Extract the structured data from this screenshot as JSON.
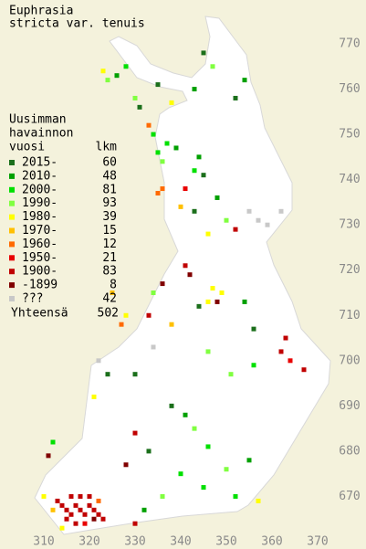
{
  "title": [
    "Euphrasia",
    "stricta var. tenuis"
  ],
  "legend": {
    "header": [
      "Uusimman",
      "havainnon",
      "vuosi"
    ],
    "count_header": "lkm",
    "rows": [
      {
        "label": "2015-",
        "count": 60,
        "color": "#1b6f1b"
      },
      {
        "label": "2010-",
        "count": 48,
        "color": "#00a000"
      },
      {
        "label": "2000-",
        "count": 81,
        "color": "#00e000"
      },
      {
        "label": "1990-",
        "count": 93,
        "color": "#80ff40"
      },
      {
        "label": "1980-",
        "count": 39,
        "color": "#ffff00"
      },
      {
        "label": "1970-",
        "count": 15,
        "color": "#ffc000"
      },
      {
        "label": "1960-",
        "count": 12,
        "color": "#ff6a00"
      },
      {
        "label": "1950-",
        "count": 21,
        "color": "#e80000"
      },
      {
        "label": "1900-",
        "count": 83,
        "color": "#c00000"
      },
      {
        "label": "-1899",
        "count": 8,
        "color": "#800000"
      },
      {
        "label": "???",
        "count": 42,
        "color": "#c8c8c8"
      }
    ],
    "total_label": "Yhteensä",
    "total": 502
  },
  "xlim": [
    310,
    370
  ],
  "xticks": [
    310,
    320,
    330,
    340,
    350,
    360,
    370
  ],
  "ylim": [
    660,
    770
  ],
  "yticks": [
    670,
    680,
    690,
    700,
    710,
    720,
    730,
    740,
    750,
    760,
    770
  ],
  "squares": [
    [
      328,
      765,
      2
    ],
    [
      326,
      763,
      1
    ],
    [
      345,
      768,
      0
    ],
    [
      347,
      765,
      3
    ],
    [
      354,
      762,
      1
    ],
    [
      352,
      758,
      0
    ],
    [
      343,
      760,
      1
    ],
    [
      335,
      761,
      0
    ],
    [
      338,
      757,
      4
    ],
    [
      331,
      756,
      0
    ],
    [
      323,
      764,
      4
    ],
    [
      324,
      762,
      3
    ],
    [
      330,
      758,
      3
    ],
    [
      333,
      752,
      6
    ],
    [
      334,
      750,
      2
    ],
    [
      337,
      748,
      2
    ],
    [
      339,
      747,
      1
    ],
    [
      335,
      746,
      2
    ],
    [
      336,
      744,
      3
    ],
    [
      343,
      742,
      2
    ],
    [
      345,
      741,
      0
    ],
    [
      344,
      745,
      1
    ],
    [
      348,
      736,
      1
    ],
    [
      341,
      738,
      7
    ],
    [
      336,
      738,
      6
    ],
    [
      335,
      737,
      6
    ],
    [
      340,
      734,
      5
    ],
    [
      343,
      733,
      0
    ],
    [
      355,
      733,
      10
    ],
    [
      357,
      731,
      10
    ],
    [
      359,
      730,
      10
    ],
    [
      362,
      733,
      10
    ],
    [
      352,
      729,
      8
    ],
    [
      350,
      731,
      3
    ],
    [
      346,
      728,
      4
    ],
    [
      341,
      721,
      8
    ],
    [
      342,
      719,
      9
    ],
    [
      347,
      716,
      4
    ],
    [
      349,
      715,
      4
    ],
    [
      346,
      713,
      4
    ],
    [
      348,
      713,
      9
    ],
    [
      354,
      713,
      1
    ],
    [
      336,
      717,
      9
    ],
    [
      334,
      715,
      3
    ],
    [
      333,
      710,
      8
    ],
    [
      338,
      708,
      5
    ],
    [
      344,
      712,
      0
    ],
    [
      363,
      705,
      8
    ],
    [
      362,
      702,
      8
    ],
    [
      364,
      700,
      7
    ],
    [
      367,
      698,
      8
    ],
    [
      356,
      707,
      0
    ],
    [
      356,
      699,
      2
    ],
    [
      351,
      697,
      3
    ],
    [
      346,
      702,
      3
    ],
    [
      334,
      703,
      10
    ],
    [
      330,
      697,
      0
    ],
    [
      338,
      690,
      0
    ],
    [
      341,
      688,
      1
    ],
    [
      343,
      685,
      3
    ],
    [
      330,
      684,
      8
    ],
    [
      333,
      680,
      0
    ],
    [
      328,
      677,
      9
    ],
    [
      346,
      681,
      2
    ],
    [
      350,
      676,
      3
    ],
    [
      355,
      678,
      1
    ],
    [
      340,
      675,
      2
    ],
    [
      345,
      672,
      2
    ],
    [
      352,
      670,
      2
    ],
    [
      357,
      669,
      4
    ],
    [
      336,
      670,
      3
    ],
    [
      332,
      667,
      1
    ],
    [
      330,
      664,
      8
    ],
    [
      313,
      669,
      8
    ],
    [
      314,
      668,
      8
    ],
    [
      315,
      667,
      8
    ],
    [
      316,
      666,
      8
    ],
    [
      317,
      668,
      8
    ],
    [
      318,
      667,
      8
    ],
    [
      319,
      666,
      8
    ],
    [
      320,
      668,
      8
    ],
    [
      321,
      667,
      8
    ],
    [
      322,
      666,
      8
    ],
    [
      323,
      665,
      8
    ],
    [
      315,
      665,
      8
    ],
    [
      317,
      664,
      8
    ],
    [
      319,
      664,
      7
    ],
    [
      321,
      665,
      9
    ],
    [
      318,
      670,
      8
    ],
    [
      320,
      670,
      8
    ],
    [
      316,
      670,
      8
    ],
    [
      322,
      669,
      6
    ],
    [
      312,
      667,
      5
    ],
    [
      310,
      670,
      4
    ],
    [
      314,
      663,
      4
    ],
    [
      322,
      700,
      10
    ],
    [
      324,
      697,
      0
    ],
    [
      321,
      692,
      4
    ],
    [
      327,
      708,
      6
    ],
    [
      328,
      710,
      4
    ],
    [
      325,
      715,
      5
    ],
    [
      312,
      682,
      2
    ],
    [
      311,
      679,
      9
    ]
  ]
}
